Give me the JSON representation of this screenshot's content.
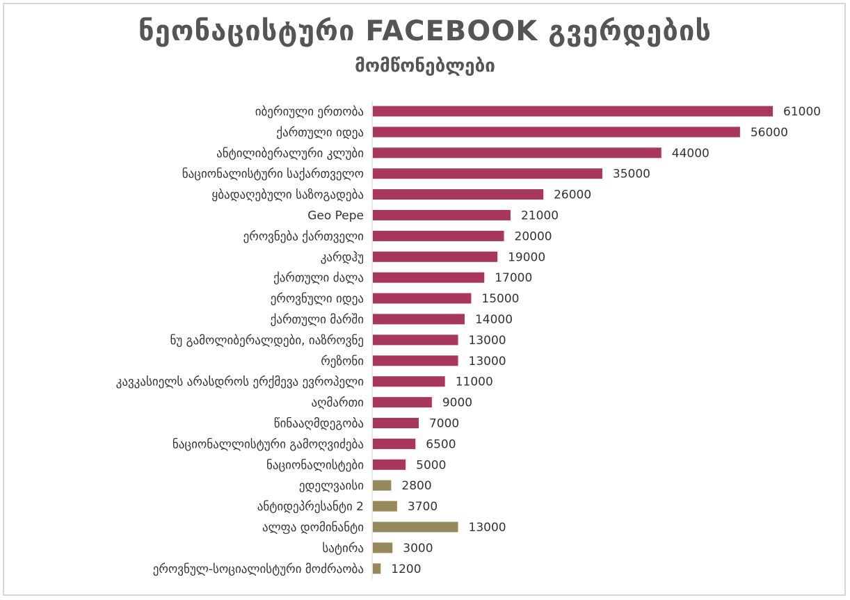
{
  "chart_data": {
    "type": "bar",
    "orientation": "horizontal",
    "title": "ნეონაცისტური FACEBOOK გვერდების",
    "subtitle": "მომწონებლები",
    "categories": [
      "იბერიული ერთობა",
      "ქართული იდეა",
      "ანტილიბერალური კლუბი",
      "ნაციონალისტური საქართველო",
      "ყბადაღებული საზოგადება",
      "Geo Pepe",
      "ეროვნება ქართველი",
      "კარდჰუ",
      "ქართული ძალა",
      "ეროვნული იდეა",
      "ქართული მარში",
      "ნუ გამოლიბერალდები, იაზროვნე",
      "რეზონი",
      "კავკასიელს არასდროს ერქმევა ევროპელი",
      "აღმართი",
      "წინააღმდეგობა",
      "ნაციონალლისტური გამოღვიძება",
      "ნაციონალისტები",
      "ედელვაისი",
      "ანტიდეპრესანტი 2",
      "ალფა დომინანტი",
      "სატირა",
      "ეროვნულ-სოციალისტური მოძრაობა"
    ],
    "values": [
      61000,
      56000,
      44000,
      35000,
      26000,
      21000,
      20000,
      19000,
      17000,
      15000,
      14000,
      13000,
      13000,
      11000,
      9000,
      7000,
      6500,
      5000,
      2800,
      3700,
      13000,
      3000,
      1200
    ],
    "value_labels": [
      "61000",
      "56000",
      "44000",
      "35000",
      "26000",
      "21000",
      "20000",
      "19000",
      "17000",
      "15000",
      "14000",
      "13000",
      "13000",
      "11000",
      "9000",
      "7000",
      "6500",
      "5000",
      "2800",
      "3700",
      "13000",
      "3000",
      "1200"
    ],
    "bar_colors": [
      "#a8375c",
      "#a8375c",
      "#a8375c",
      "#a8375c",
      "#a8375c",
      "#a8375c",
      "#a8375c",
      "#a8375c",
      "#a8375c",
      "#a8375c",
      "#a8375c",
      "#a8375c",
      "#a8375c",
      "#a8375c",
      "#a8375c",
      "#a8375c",
      "#a8375c",
      "#a8375c",
      "#968a5c",
      "#968a5c",
      "#968a5c",
      "#968a5c",
      "#968a5c"
    ],
    "xlim": [
      0,
      64000
    ],
    "grid": false,
    "legend": "none"
  }
}
